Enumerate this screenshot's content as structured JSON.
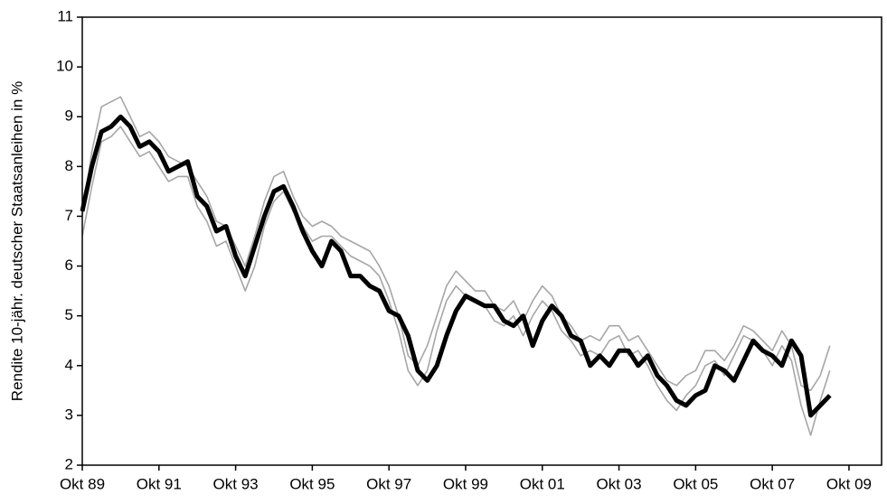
{
  "chart_data": {
    "type": "line",
    "y_label": "Rendite 10-jähr. deutscher Staatsanleihen in %",
    "x": [
      1989.75,
      1990,
      1990.25,
      1990.5,
      1990.75,
      1991,
      1991.25,
      1991.5,
      1991.75,
      1992,
      1992.25,
      1992.5,
      1992.75,
      1993,
      1993.25,
      1993.5,
      1993.75,
      1994,
      1994.25,
      1994.5,
      1994.75,
      1995,
      1995.25,
      1995.5,
      1995.75,
      1996,
      1996.25,
      1996.5,
      1996.75,
      1997,
      1997.25,
      1997.5,
      1997.75,
      1998,
      1998.25,
      1998.5,
      1998.75,
      1999,
      1999.25,
      1999.5,
      1999.75,
      2000,
      2000.25,
      2000.5,
      2000.75,
      2001,
      2001.25,
      2001.5,
      2001.75,
      2002,
      2002.25,
      2002.5,
      2002.75,
      2003,
      2003.25,
      2003.5,
      2003.75,
      2004,
      2004.25,
      2004.5,
      2004.75,
      2005,
      2005.25,
      2005.5,
      2005.75,
      2006,
      2006.25,
      2006.5,
      2006.75,
      2007,
      2007.25,
      2007.5,
      2007.75,
      2008,
      2008.25,
      2008.5,
      2008.75,
      2009,
      2009.25
    ],
    "series": [
      {
        "color": "#a6a6a6",
        "width": 1.6,
        "values": [
          7.0,
          8.3,
          9.2,
          9.3,
          9.4,
          9.0,
          8.6,
          8.7,
          8.5,
          8.2,
          8.1,
          8.0,
          7.7,
          7.4,
          6.9,
          6.8,
          6.4,
          6.0,
          6.6,
          7.3,
          7.8,
          7.9,
          7.4,
          7.0,
          6.8,
          6.9,
          6.8,
          6.6,
          6.5,
          6.4,
          6.3,
          6.0,
          5.6,
          5.0,
          4.2,
          4.0,
          4.4,
          5.0,
          5.6,
          5.9,
          5.7,
          5.5,
          5.5,
          5.2,
          5.1,
          5.3,
          4.9,
          5.3,
          5.6,
          5.4,
          5.0,
          4.8,
          4.5,
          4.6,
          4.5,
          4.8,
          4.8,
          4.5,
          4.6,
          4.3,
          4.0,
          3.7,
          3.6,
          3.8,
          3.9,
          4.3,
          4.3,
          4.1,
          4.4,
          4.8,
          4.7,
          4.5,
          4.3,
          4.7,
          4.4,
          3.6,
          3.5,
          3.8,
          4.4
        ]
      },
      {
        "color": "#a6a6a6",
        "width": 1.6,
        "values": [
          6.6,
          7.6,
          8.5,
          8.6,
          8.8,
          8.5,
          8.2,
          8.3,
          8.0,
          7.7,
          7.8,
          7.8,
          7.2,
          6.9,
          6.4,
          6.5,
          6.0,
          5.5,
          6.0,
          6.8,
          7.3,
          7.5,
          7.1,
          6.8,
          6.5,
          6.6,
          6.6,
          6.4,
          6.2,
          6.1,
          6.0,
          5.8,
          5.3,
          4.7,
          3.9,
          3.6,
          3.9,
          4.7,
          5.3,
          5.6,
          5.4,
          5.3,
          5.2,
          4.9,
          4.8,
          5.0,
          4.6,
          5.0,
          5.3,
          5.1,
          4.7,
          4.5,
          4.2,
          4.3,
          4.2,
          4.5,
          4.6,
          4.2,
          4.3,
          4.0,
          3.6,
          3.3,
          3.1,
          3.4,
          3.6,
          4.0,
          4.1,
          3.8,
          4.2,
          4.6,
          4.5,
          4.3,
          4.0,
          4.4,
          4.1,
          3.2,
          2.6,
          3.3,
          3.9
        ]
      },
      {
        "color": "#000000",
        "width": 5,
        "values": [
          7.1,
          8.0,
          8.7,
          8.8,
          9.0,
          8.8,
          8.4,
          8.5,
          8.3,
          7.9,
          8.0,
          8.1,
          7.4,
          7.2,
          6.7,
          6.8,
          6.2,
          5.8,
          6.4,
          7.0,
          7.5,
          7.6,
          7.2,
          6.7,
          6.3,
          6.0,
          6.5,
          6.3,
          5.8,
          5.8,
          5.6,
          5.5,
          5.1,
          5.0,
          4.6,
          3.9,
          3.7,
          4.0,
          4.6,
          5.1,
          5.4,
          5.3,
          5.2,
          5.2,
          4.9,
          4.8,
          5.0,
          4.4,
          4.9,
          5.2,
          5.0,
          4.6,
          4.5,
          4.0,
          4.2,
          4.0,
          4.3,
          4.3,
          4.0,
          4.2,
          3.8,
          3.6,
          3.3,
          3.2,
          3.4,
          3.5,
          4.0,
          3.9,
          3.7,
          4.1,
          4.5,
          4.3,
          4.2,
          4.0,
          4.5,
          4.2,
          3.0,
          3.2,
          3.4
        ]
      }
    ],
    "xlim": [
      1989.75,
      2010.6
    ],
    "xticks": [
      {
        "value": 1989.75,
        "label": "Okt 89"
      },
      {
        "value": 1991.75,
        "label": "Okt 91"
      },
      {
        "value": 1993.75,
        "label": "Okt 93"
      },
      {
        "value": 1995.75,
        "label": "Okt 95"
      },
      {
        "value": 1997.75,
        "label": "Okt 97"
      },
      {
        "value": 1999.75,
        "label": "Okt 99"
      },
      {
        "value": 2001.75,
        "label": "Okt 01"
      },
      {
        "value": 2003.75,
        "label": "Okt 03"
      },
      {
        "value": 2005.75,
        "label": "Okt 05"
      },
      {
        "value": 2007.75,
        "label": "Okt 07"
      },
      {
        "value": 2009.75,
        "label": "Okt 09"
      }
    ],
    "ylim": [
      2,
      11
    ],
    "yticks": [
      2,
      3,
      4,
      5,
      6,
      7,
      8,
      9,
      10,
      11
    ]
  }
}
